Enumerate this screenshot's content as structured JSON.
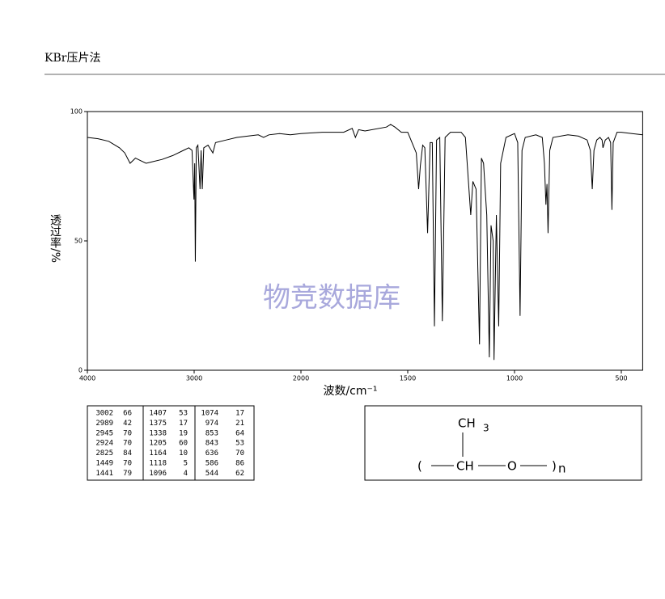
{
  "header": {
    "title": "KBr压片法"
  },
  "chart_data": {
    "type": "line",
    "xlabel": "波数/cm⁻¹",
    "ylabel": "透过率/%",
    "watermark": "物竞数据库",
    "xlim": [
      4000,
      400
    ],
    "xticks": [
      4000,
      3000,
      2000,
      1500,
      1000,
      500
    ],
    "ylim": [
      0,
      100
    ],
    "yticks": [
      0,
      50,
      100
    ],
    "color": "#000000",
    "x": [
      4000,
      3900,
      3800,
      3700,
      3650,
      3600,
      3550,
      3500,
      3450,
      3400,
      3300,
      3200,
      3100,
      3050,
      3020,
      3002,
      2995,
      2989,
      2980,
      2965,
      2945,
      2935,
      2924,
      2910,
      2870,
      2825,
      2800,
      2700,
      2600,
      2500,
      2400,
      2350,
      2300,
      2200,
      2100,
      2000,
      1900,
      1800,
      1760,
      1745,
      1730,
      1700,
      1600,
      1580,
      1560,
      1530,
      1500,
      1480,
      1460,
      1449,
      1441,
      1430,
      1420,
      1407,
      1395,
      1385,
      1375,
      1365,
      1350,
      1338,
      1325,
      1300,
      1250,
      1230,
      1215,
      1205,
      1195,
      1180,
      1164,
      1155,
      1145,
      1130,
      1118,
      1110,
      1100,
      1096,
      1085,
      1074,
      1065,
      1040,
      1000,
      985,
      974,
      965,
      950,
      900,
      870,
      860,
      853,
      848,
      843,
      835,
      820,
      750,
      700,
      660,
      645,
      636,
      628,
      615,
      600,
      590,
      586,
      575,
      560,
      550,
      544,
      538,
      520,
      500,
      450,
      400
    ],
    "values": [
      90,
      89.5,
      88.5,
      86,
      84,
      80,
      82,
      81,
      80,
      80.5,
      81.5,
      83,
      85,
      86,
      85,
      66,
      80,
      42,
      86,
      87,
      70,
      85,
      70,
      86,
      87,
      84,
      88,
      89,
      90,
      90.5,
      91,
      90,
      91,
      91.5,
      91,
      91.5,
      92,
      92,
      93.5,
      90,
      93,
      92.5,
      94,
      95,
      94,
      92,
      92,
      88,
      84,
      70,
      79,
      87,
      86,
      53,
      88,
      88,
      17,
      89,
      90,
      19,
      90,
      92,
      92,
      90,
      72,
      60,
      73,
      70,
      10,
      82,
      80,
      60,
      5,
      56,
      50,
      4,
      60,
      17,
      80,
      90,
      91.5,
      88,
      21,
      85,
      90,
      91,
      90,
      80,
      64,
      72,
      53,
      85,
      90,
      91,
      90.5,
      89,
      85,
      70,
      85,
      89,
      90,
      89,
      86,
      89,
      90,
      88,
      62,
      88,
      92,
      92,
      91.5,
      91
    ]
  },
  "peak_table": [
    [
      [
        3002,
        66
      ],
      [
        2989,
        42
      ],
      [
        2945,
        70
      ],
      [
        2924,
        70
      ],
      [
        2825,
        84
      ],
      [
        1449,
        70
      ],
      [
        1441,
        79
      ]
    ],
    [
      [
        1407,
        53
      ],
      [
        1375,
        17
      ],
      [
        1338,
        19
      ],
      [
        1205,
        60
      ],
      [
        1164,
        10
      ],
      [
        1118,
        5
      ],
      [
        1096,
        4
      ]
    ],
    [
      [
        1074,
        17
      ],
      [
        974,
        21
      ],
      [
        853,
        64
      ],
      [
        843,
        53
      ],
      [
        636,
        70
      ],
      [
        586,
        86
      ],
      [
        544,
        62
      ]
    ]
  ],
  "structure": {
    "methyl": "CH",
    "methyl_sub": "3",
    "open": "(",
    "ch": "CH",
    "o": "O",
    "close": ")",
    "n": "n"
  }
}
